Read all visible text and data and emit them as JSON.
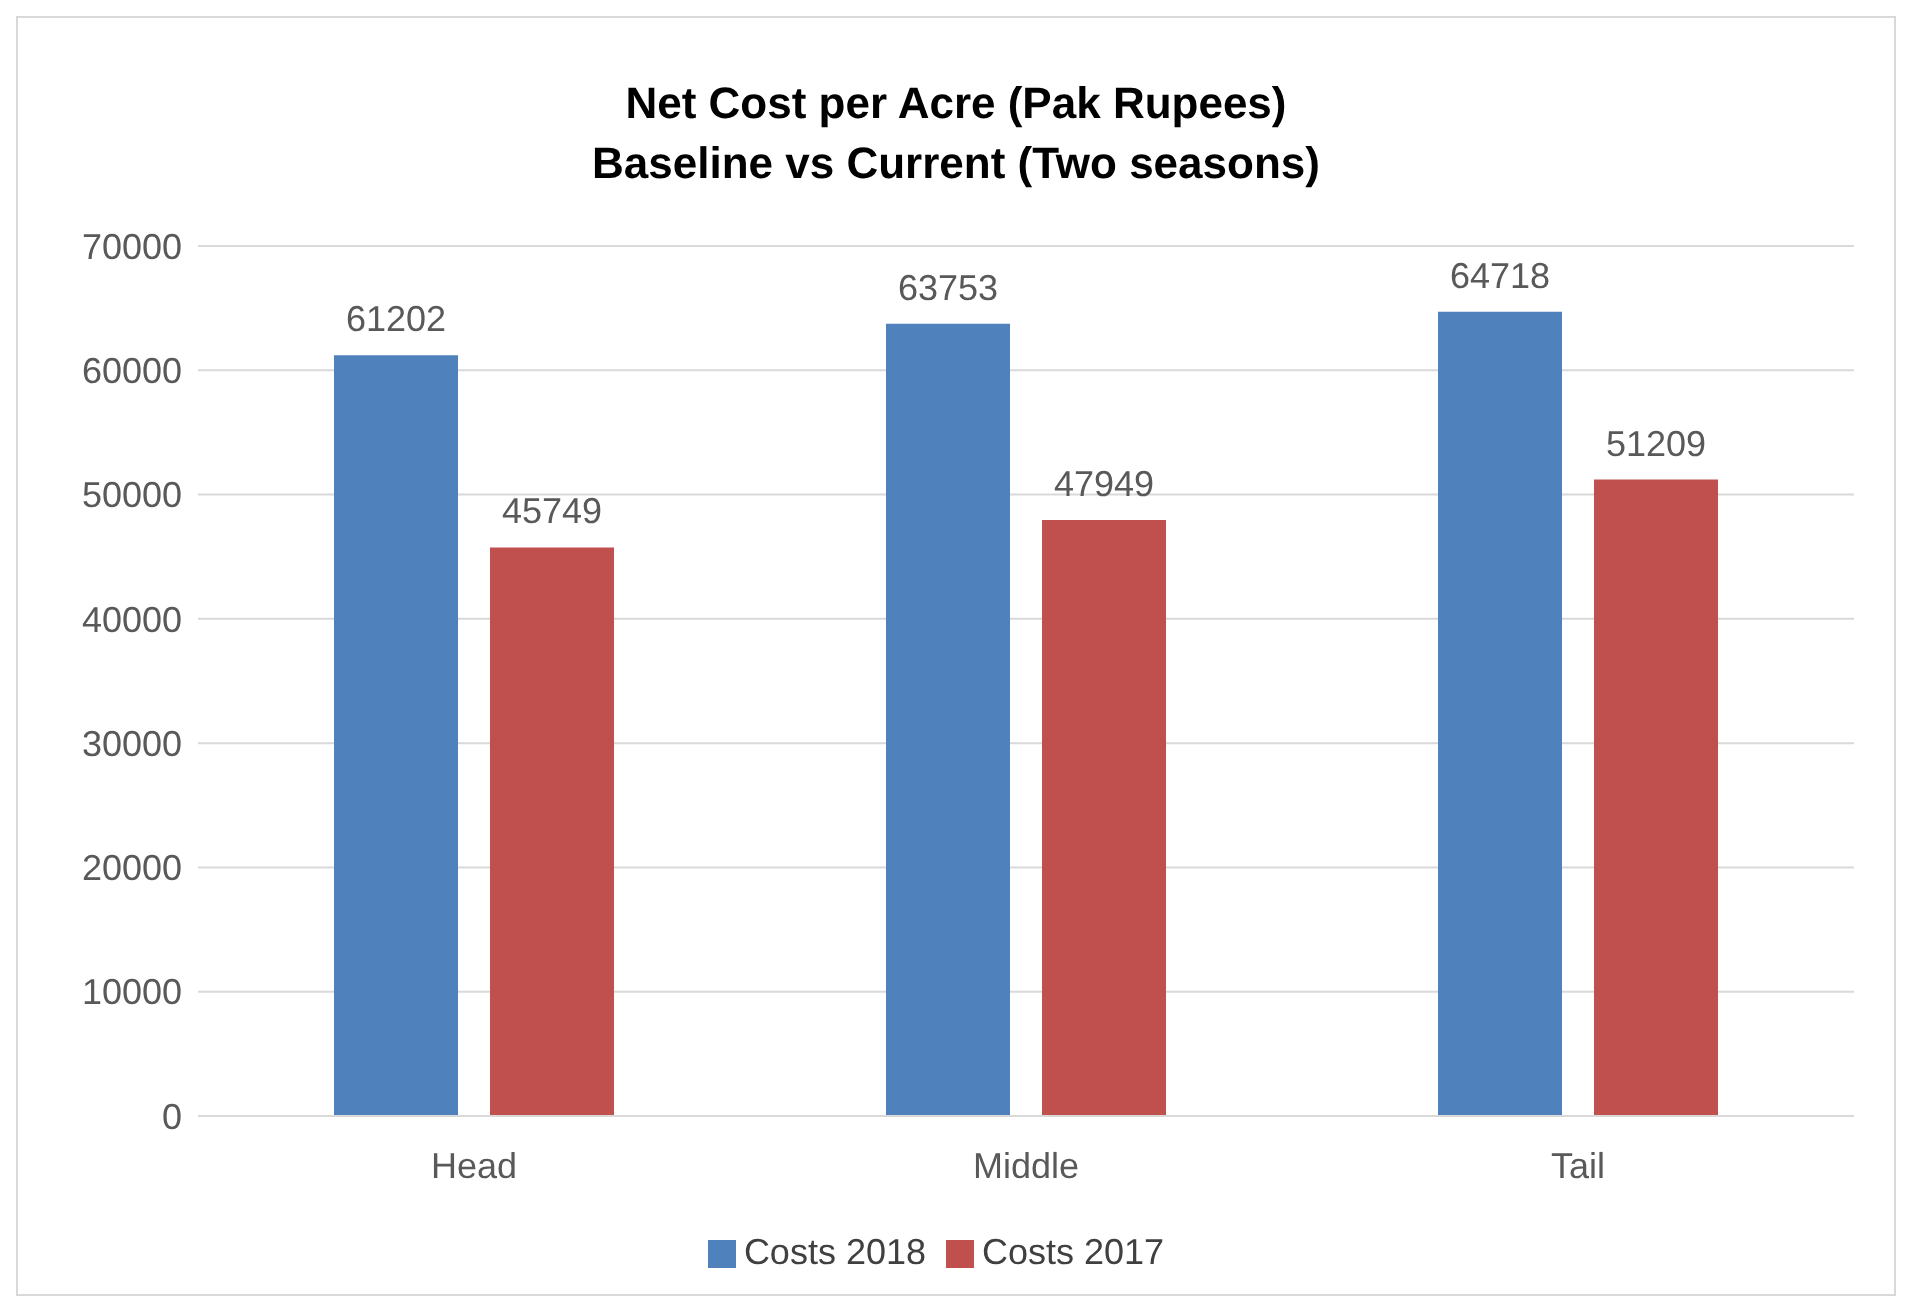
{
  "chart_data": {
    "type": "bar",
    "title": "Net Cost per Acre (Pak Rupees)",
    "subtitle": "Baseline vs Current (Two seasons)",
    "categories": [
      "Head",
      "Middle",
      "Tail"
    ],
    "series": [
      {
        "name": "Costs 2018",
        "color": "#4f81bd",
        "values": [
          61202,
          63753,
          64718
        ]
      },
      {
        "name": "Costs 2017",
        "color": "#c0504d",
        "values": [
          45749,
          47949,
          51209
        ]
      }
    ],
    "ylim": [
      0,
      70000
    ],
    "yticks": [
      0,
      10000,
      20000,
      30000,
      40000,
      50000,
      60000,
      70000
    ],
    "grid": "y",
    "legend": "bottom",
    "data_labels": true
  }
}
